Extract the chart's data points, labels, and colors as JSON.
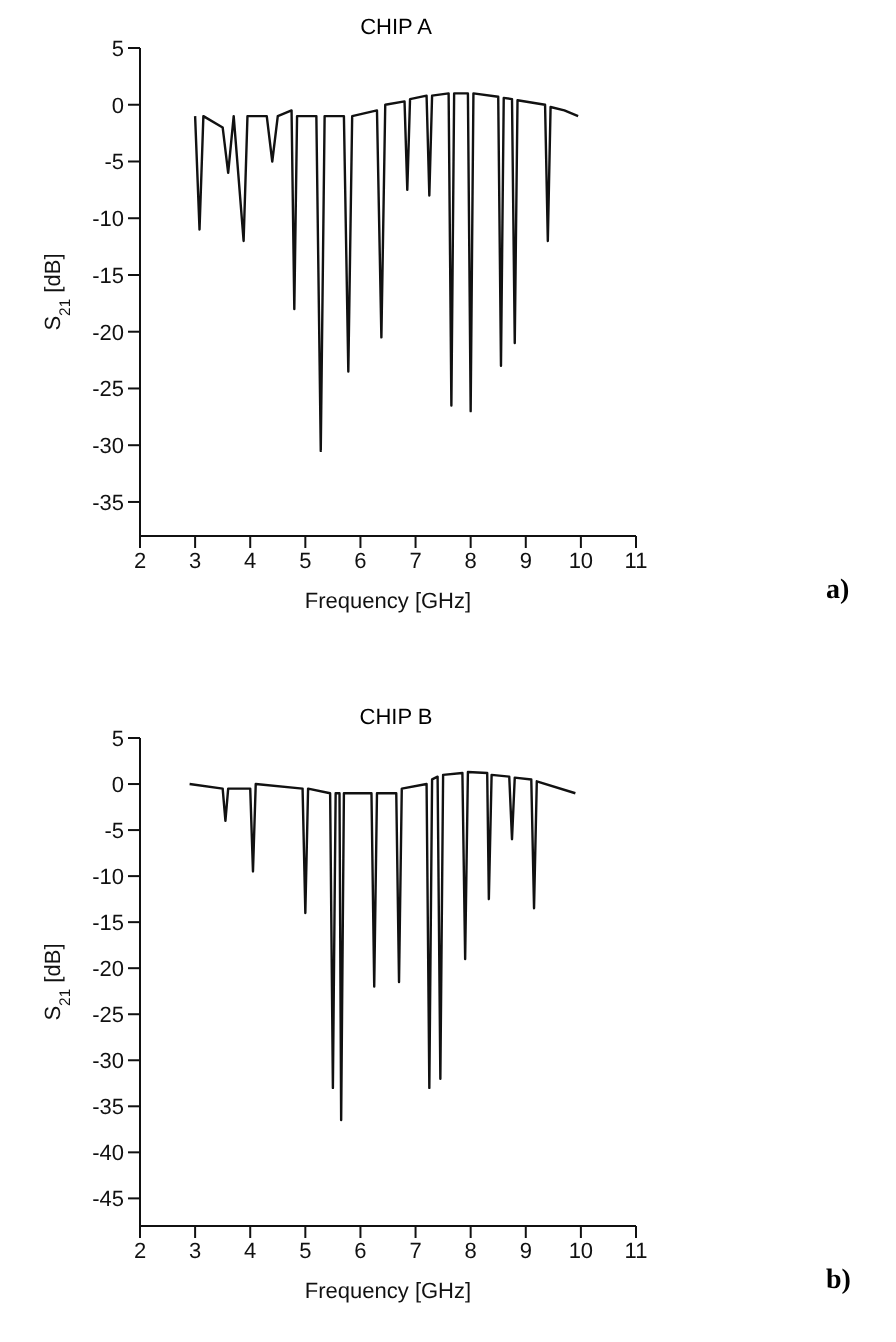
{
  "chart_data": [
    {
      "type": "line",
      "title": "CHIP A",
      "xlabel": "Frequency [GHz]",
      "ylabel": "S$_{21}$ [dB]",
      "annotations": [
        "a)"
      ],
      "xlim": [
        2,
        11
      ],
      "xticks": [
        2,
        3,
        4,
        5,
        6,
        7,
        8,
        9,
        10,
        11
      ],
      "ylim": [
        -38,
        5
      ],
      "yticks": [
        5,
        0,
        -5,
        -10,
        -15,
        -20,
        -25,
        -30,
        -35
      ],
      "marker": "none",
      "line_style": "solid",
      "series": [
        {
          "color": "#111111",
          "x": [
            3.0,
            3.08,
            3.15,
            3.5,
            3.6,
            3.7,
            3.88,
            3.95,
            4.3,
            4.4,
            4.5,
            4.75,
            4.8,
            4.85,
            5.2,
            5.28,
            5.35,
            5.7,
            5.78,
            5.85,
            6.3,
            6.38,
            6.45,
            6.8,
            6.85,
            6.9,
            7.2,
            7.25,
            7.3,
            7.6,
            7.65,
            7.7,
            7.95,
            8.0,
            8.05,
            8.5,
            8.55,
            8.6,
            8.75,
            8.8,
            8.85,
            9.35,
            9.4,
            9.45,
            9.7,
            9.95
          ],
          "values": [
            -1,
            -11,
            -1,
            -2,
            -6,
            -1,
            -12,
            -1,
            -1,
            -5,
            -1,
            -0.5,
            -18,
            -1,
            -1,
            -30.5,
            -1,
            -1,
            -23.5,
            -1,
            -0.5,
            -20.5,
            0,
            0.3,
            -7.5,
            0.5,
            0.8,
            -8,
            0.8,
            1,
            -26.5,
            1,
            1,
            -27,
            1,
            0.7,
            -23,
            0.6,
            0.5,
            -21,
            0.4,
            0,
            -12,
            -0.2,
            -0.5,
            -1
          ]
        }
      ]
    },
    {
      "type": "line",
      "title": "CHIP B",
      "xlabel": "Frequency [GHz]",
      "ylabel": "S$_{21}$ [dB]",
      "annotations": [
        "b)"
      ],
      "xlim": [
        2,
        11
      ],
      "xticks": [
        2,
        3,
        4,
        5,
        6,
        7,
        8,
        9,
        10,
        11
      ],
      "ylim": [
        -48,
        5
      ],
      "yticks": [
        5,
        0,
        -5,
        -10,
        -15,
        -20,
        -25,
        -30,
        -35,
        -40,
        -45
      ],
      "marker": "none",
      "line_style": "solid",
      "series": [
        {
          "color": "#111111",
          "x": [
            2.9,
            3.5,
            3.55,
            3.6,
            4.0,
            4.05,
            4.1,
            4.95,
            5.0,
            5.05,
            5.45,
            5.5,
            5.55,
            5.62,
            5.65,
            5.7,
            6.2,
            6.25,
            6.3,
            6.65,
            6.7,
            6.75,
            7.2,
            7.25,
            7.3,
            7.4,
            7.45,
            7.5,
            7.85,
            7.9,
            7.95,
            8.3,
            8.33,
            8.38,
            8.7,
            8.75,
            8.8,
            9.1,
            9.15,
            9.2,
            9.9
          ],
          "values": [
            0,
            -0.5,
            -4,
            -0.5,
            -0.5,
            -9.5,
            0,
            -0.5,
            -14,
            -0.5,
            -1,
            -33,
            -1,
            -1,
            -36.5,
            -1,
            -1,
            -22,
            -1,
            -1,
            -21.5,
            -0.5,
            0,
            -33,
            0.5,
            0.8,
            -32,
            1,
            1.2,
            -19,
            1.3,
            1.2,
            -12.5,
            1,
            0.8,
            -6,
            0.7,
            0.5,
            -13.5,
            0.3,
            -1
          ]
        }
      ]
    }
  ]
}
